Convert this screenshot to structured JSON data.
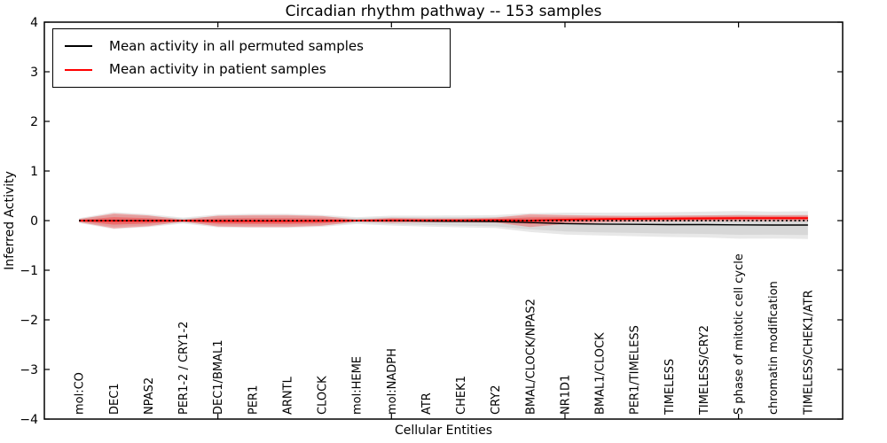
{
  "chart_data": {
    "type": "line",
    "title": "Circadian rhythm pathway -- 153 samples",
    "xlabel": "Cellular Entities",
    "ylabel": "Inferred Activity",
    "ylim": [
      -4,
      4
    ],
    "xlim": [
      0,
      23
    ],
    "grid": false,
    "yticks": [
      {
        "label": "4",
        "value": 4
      },
      {
        "label": "3",
        "value": 3
      },
      {
        "label": "2",
        "value": 2
      },
      {
        "label": "1",
        "value": 1
      },
      {
        "label": "0",
        "value": 0
      },
      {
        "label": "−1",
        "value": -1
      },
      {
        "label": "−2",
        "value": -2
      },
      {
        "label": "−3",
        "value": -3
      },
      {
        "label": "−4",
        "value": -4
      }
    ],
    "xtick_positions": [
      5,
      10,
      15,
      20
    ],
    "categories": [
      "mol:CO",
      "DEC1",
      "NPAS2",
      "PER1-2 / CRY1-2",
      "DEC1/BMAL1",
      "PER1",
      "ARNTL",
      "CLOCK",
      "mol:HEME",
      "mol:NADPH",
      "ATR",
      "CHEK1",
      "CRY2",
      "BMAL/CLOCK/NPAS2",
      "NR1D1",
      "BMAL1/CLOCK",
      "PER1/TIMELESS",
      "TIMELESS",
      "TIMELESS/CRY2",
      "S phase of mitotic cell cycle",
      "chromatin modification",
      "TIMELESS/CHEK1/ATR"
    ],
    "legend": {
      "position": "upper left",
      "entries": [
        {
          "label": "Mean activity in all permuted samples",
          "color": "#000000"
        },
        {
          "label": "Mean activity in patient samples",
          "color": "#ff0000"
        }
      ]
    },
    "reference_line": {
      "y": 0,
      "style": "dotted",
      "color": "#000000"
    },
    "series": [
      {
        "name": "Mean activity in all permuted samples",
        "color": "#000000",
        "band_color": "#bbbbbb",
        "values": [
          0,
          0,
          0,
          0,
          -0.005,
          -0.005,
          -0.005,
          -0.005,
          0,
          0,
          -0.01,
          -0.015,
          -0.02,
          -0.04,
          -0.06,
          -0.07,
          -0.075,
          -0.08,
          -0.08,
          -0.085,
          -0.09,
          -0.09
        ],
        "band_halfwidth": [
          0.05,
          0.17,
          0.13,
          0.06,
          0.13,
          0.14,
          0.14,
          0.12,
          0.07,
          0.1,
          0.11,
          0.12,
          0.13,
          0.19,
          0.22,
          0.23,
          0.24,
          0.25,
          0.26,
          0.28,
          0.27,
          0.28
        ]
      },
      {
        "name": "Mean activity in patient samples",
        "color": "#ff0000",
        "band_color": "#ff0000",
        "values": [
          0,
          -0.005,
          -0.005,
          0,
          -0.01,
          -0.01,
          -0.01,
          -0.005,
          0,
          0.005,
          0.005,
          0.005,
          0.01,
          0,
          0.02,
          0.03,
          0.035,
          0.04,
          0.045,
          0.05,
          0.05,
          0.05
        ],
        "band_halfwidth": [
          0.03,
          0.15,
          0.11,
          0.02,
          0.11,
          0.12,
          0.12,
          0.1,
          0.02,
          0.05,
          0.04,
          0.04,
          0.05,
          0.13,
          0.09,
          0.07,
          0.06,
          0.06,
          0.06,
          0.06,
          0.06,
          0.06
        ]
      }
    ]
  }
}
